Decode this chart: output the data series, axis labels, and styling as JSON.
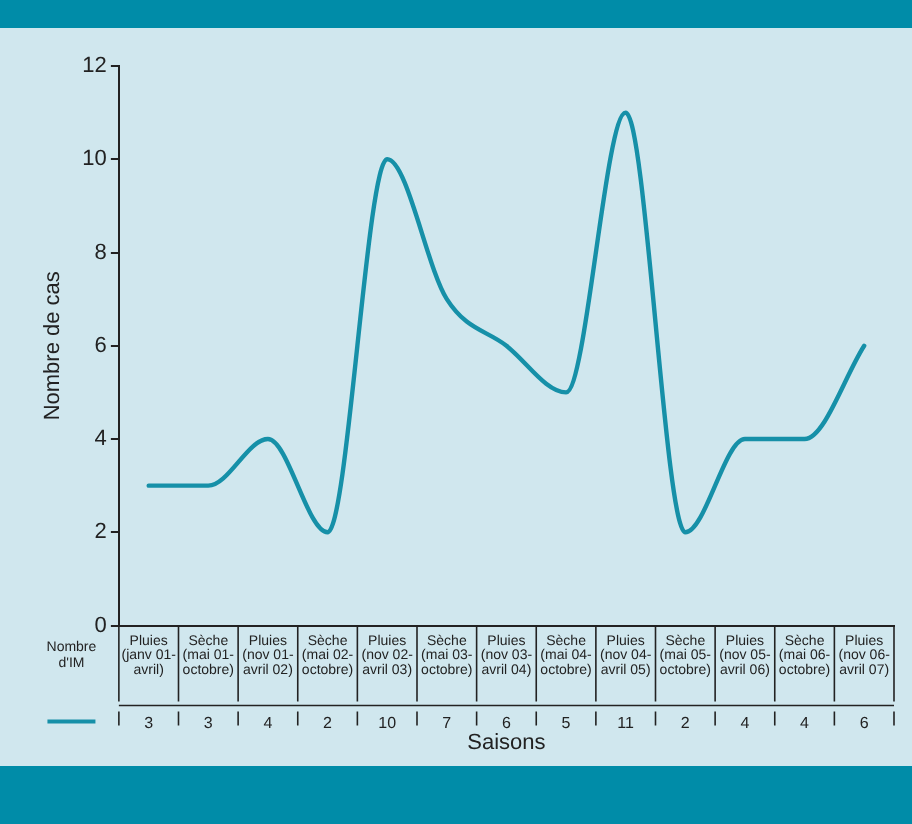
{
  "chart_data": {
    "type": "line",
    "xlabel": "Saisons",
    "ylabel": "Nombre de cas",
    "categories": [
      "Pluies (janv 01-avril)",
      "Sèche (mai 01-octobre)",
      "Pluies (nov 01-avril 02)",
      "Sèche (mai 02-octobre)",
      "Pluies (nov 02-avril 03)",
      "Sèche (mai 03-octobre)",
      "Pluies (nov 03-avril 04)",
      "Sèche (mai 04-octobre)",
      "Pluies (nov 04-avril 05)",
      "Sèche (mai 05-octobre)",
      "Pluies (nov 05-avril 06)",
      "Sèche (mai 06-octobre)",
      "Pluies (nov 06-avril 07)"
    ],
    "series": [
      {
        "name": "Nombre d'IM",
        "color": "#1690a8",
        "values": [
          3,
          3,
          4,
          2,
          10,
          7,
          6,
          5,
          11,
          2,
          4,
          4,
          6
        ]
      }
    ],
    "ylim": [
      0,
      12
    ],
    "yticks": [
      0,
      2,
      4,
      6,
      8,
      10,
      12
    ],
    "grid": false,
    "legend": "bottom left",
    "marker": "none",
    "line_style": "solid",
    "data_labels": true
  }
}
